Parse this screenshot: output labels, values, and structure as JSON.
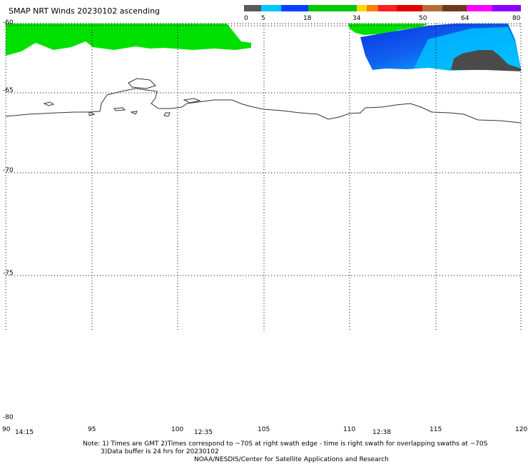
{
  "title": "SMAP NRT Winds 20230102 ascending",
  "colorbar": {
    "labels": [
      "0",
      "5",
      "18",
      "34",
      "50",
      "64",
      "80"
    ],
    "colors": [
      "#5a5a5a",
      "#00c8ff",
      "#0040ff",
      "#00c800",
      "#ffd700",
      "#ff8000",
      "#ff0000",
      "#b85a2a",
      "#6b3a1a",
      "#ff00ff",
      "#8a00ff"
    ]
  },
  "lat_labels": [
    "-60",
    "-65",
    "-70",
    "-75",
    "-80"
  ],
  "lon_labels": [
    "90",
    "95",
    "100",
    "105",
    "110",
    "115",
    "120"
  ],
  "time_labels": [
    "14:15",
    "12:35",
    "12:38"
  ],
  "notes": {
    "line1": "Note: 1) Times are GMT 2)Times correspond to ~70S at right swath edge - time is right swath for overlapping swaths at ~70S",
    "line2": "3)Data buffer is 24 hrs for 20230102",
    "line3": "NOAA/NESDIS/Center for Satellite Applications and Research"
  },
  "colors": {
    "wind_green": "#00e600",
    "wind_blue": "#1040e0",
    "wind_cyan": "#00c0ff",
    "wind_gray": "#505050"
  }
}
